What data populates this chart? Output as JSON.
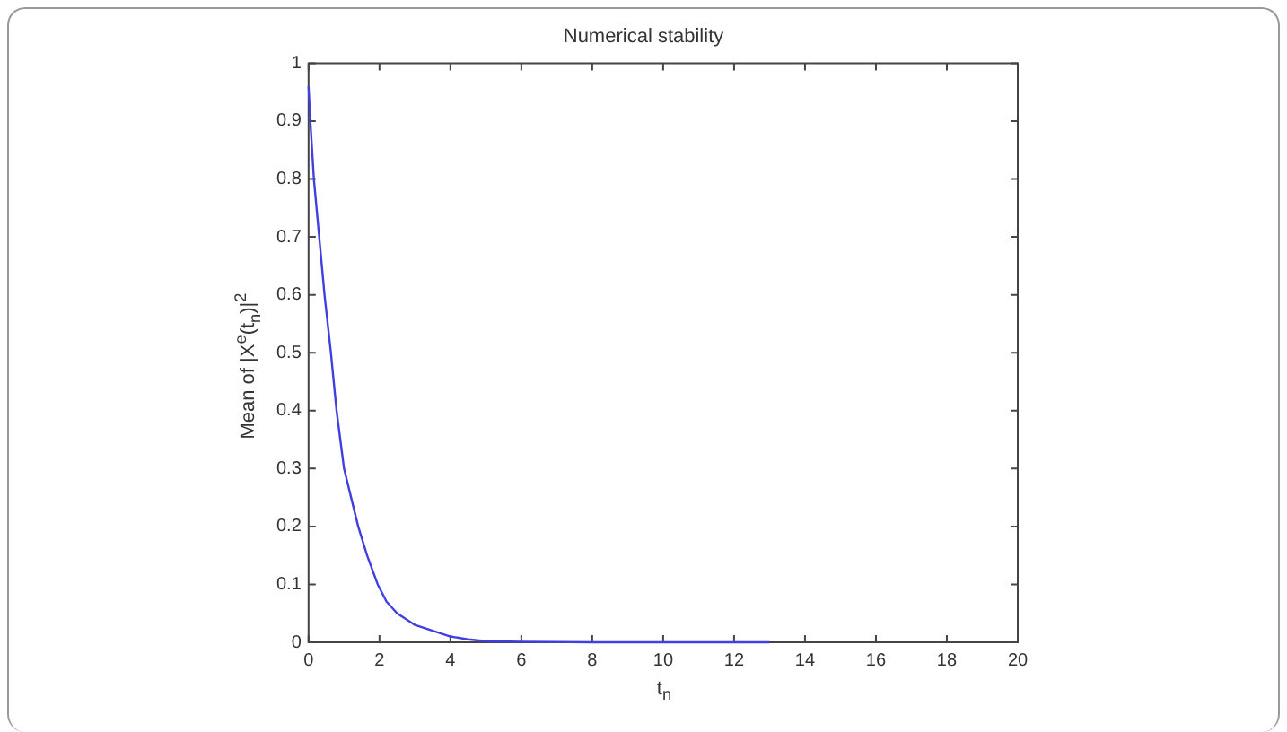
{
  "chart_data": {
    "type": "line",
    "title": "Numerical stability",
    "xlabel": "t$_{n}$",
    "ylabel": "Mean of |X$^{e}$(t$_{n}$)|$^{2}$",
    "series": [
      {
        "color": "#4040e0",
        "x": [
          0,
          0.05,
          0.15,
          0.3,
          0.45,
          0.63,
          0.79,
          1.0,
          1.2,
          1.4,
          1.65,
          1.95,
          2.2,
          2.5,
          3.0,
          3.5,
          4.0,
          4.5,
          5,
          6,
          8,
          10,
          12,
          13
        ],
        "values": [
          0.96,
          0.9,
          0.8,
          0.7,
          0.6,
          0.5,
          0.4,
          0.3,
          0.25,
          0.2,
          0.15,
          0.1,
          0.07,
          0.05,
          0.03,
          0.02,
          0.01,
          0.005,
          0.002,
          0.001,
          0,
          0,
          0,
          0
        ]
      }
    ],
    "xlim": [
      0,
      20
    ],
    "xticks": [
      0,
      2,
      4,
      6,
      8,
      10,
      12,
      14,
      16,
      18,
      20
    ],
    "ylim": [
      0,
      1
    ],
    "yticks": [
      0,
      0.1,
      0.2,
      0.3,
      0.4,
      0.5,
      0.6,
      0.7,
      0.8,
      0.9,
      1
    ],
    "grid": false,
    "legend": false,
    "marker": "none",
    "line_style": "solid"
  }
}
